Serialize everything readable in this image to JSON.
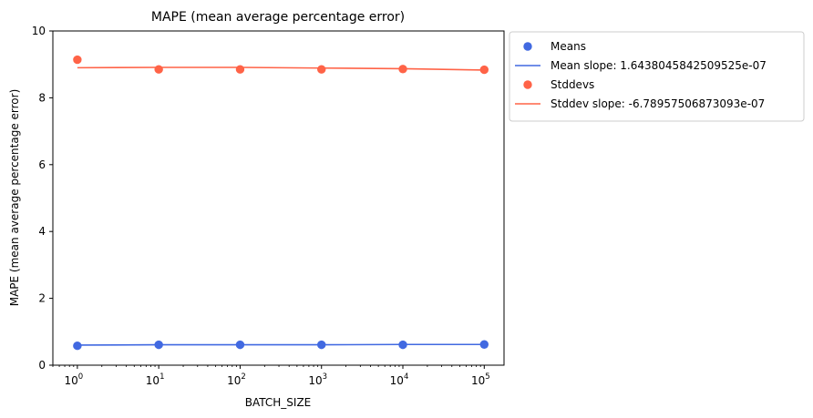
{
  "chart_data": {
    "type": "scatter",
    "title": "MAPE (mean average percentage error)",
    "xlabel": "BATCH_SIZE",
    "ylabel": "MAPE (mean average percentage error)",
    "xscale": "log",
    "x": [
      1,
      10,
      100,
      1000,
      10000,
      100000
    ],
    "xlim": [
      0.5,
      175000
    ],
    "ylim": [
      0,
      10
    ],
    "xticks": [
      {
        "value": 1,
        "base": "10",
        "exp": "0"
      },
      {
        "value": 10,
        "base": "10",
        "exp": "1"
      },
      {
        "value": 100,
        "base": "10",
        "exp": "2"
      },
      {
        "value": 1000,
        "base": "10",
        "exp": "3"
      },
      {
        "value": 10000,
        "base": "10",
        "exp": "4"
      },
      {
        "value": 100000,
        "base": "10",
        "exp": "5"
      }
    ],
    "yticks": [
      0,
      2,
      4,
      6,
      8,
      10
    ],
    "grid": false,
    "legend_position": "outside-upper-right",
    "series": [
      {
        "name": "Means",
        "kind": "points",
        "color": "#4169e1",
        "values": [
          0.58,
          0.61,
          0.61,
          0.61,
          0.61,
          0.62
        ]
      },
      {
        "name": "Mean slope: 1.6438045842509525e-07",
        "kind": "line",
        "color": "#4169e1",
        "values": [
          0.6,
          0.61,
          0.61,
          0.61,
          0.62,
          0.62
        ]
      },
      {
        "name": "Stddevs",
        "kind": "points",
        "color": "#ff6347",
        "values": [
          9.14,
          8.85,
          8.85,
          8.85,
          8.86,
          8.84
        ]
      },
      {
        "name": "Stddev slope: -6.78957506873093e-07",
        "kind": "line",
        "color": "#ff6347",
        "values": [
          8.9,
          8.91,
          8.91,
          8.89,
          8.87,
          8.83
        ]
      }
    ]
  }
}
